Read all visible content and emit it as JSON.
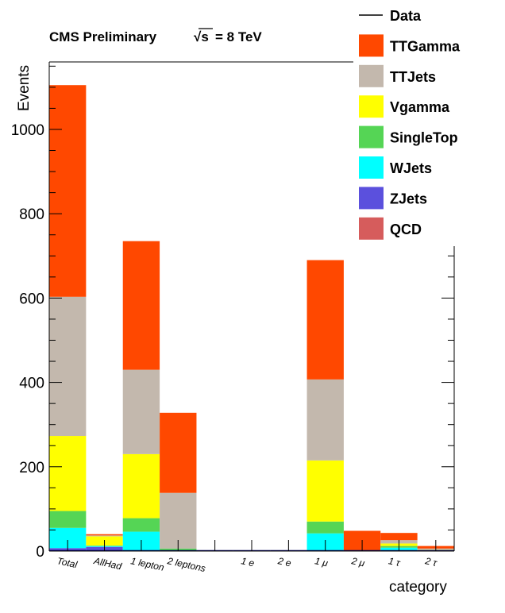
{
  "chart_data": {
    "type": "bar",
    "stacked": true,
    "title": "CMS Preliminary",
    "title_energy": "= 8 TeV",
    "sqrt_symbol": "√s",
    "xlabel": "category",
    "ylabel": "Events",
    "ylim": [
      0,
      1160
    ],
    "yticks": [
      0,
      200,
      400,
      600,
      800,
      1000
    ],
    "categories": [
      "Total",
      "AllHad",
      "1 lepton",
      "2 leptons",
      "",
      "1 e",
      "2 e",
      "1 μ",
      "2 μ",
      "1 τ",
      "2 τ"
    ],
    "series": [
      {
        "name": "ZJets",
        "color": "#5b50dd",
        "values": [
          7,
          10,
          1,
          0,
          0,
          0,
          0,
          2,
          0,
          0,
          0
        ]
      },
      {
        "name": "WJets",
        "color": "#00ffff",
        "values": [
          48,
          2,
          45,
          2,
          0,
          0,
          0,
          40,
          0,
          8,
          1
        ]
      },
      {
        "name": "SingleTop",
        "color": "#55d555",
        "values": [
          40,
          1,
          32,
          4,
          0,
          0,
          0,
          28,
          0,
          4,
          1
        ]
      },
      {
        "name": "Vgamma",
        "color": "#ffff00",
        "values": [
          178,
          22,
          152,
          0,
          0,
          0,
          0,
          145,
          0,
          6,
          1
        ]
      },
      {
        "name": "TTJets",
        "color": "#c3b8ad",
        "values": [
          330,
          2,
          200,
          132,
          0,
          0,
          0,
          192,
          0,
          8,
          3
        ]
      },
      {
        "name": "TTGamma",
        "color": "#ff4800",
        "values": [
          502,
          3,
          305,
          190,
          0,
          0,
          0,
          283,
          48,
          17,
          6
        ]
      },
      {
        "name": "QCD",
        "color": "#d65c5c",
        "values": [
          0,
          0,
          0,
          0,
          0,
          0,
          0,
          0,
          0,
          0,
          0
        ]
      }
    ],
    "data_series": {
      "name": "Data",
      "values": [
        0,
        0,
        0,
        0,
        0,
        0,
        0,
        0,
        0,
        0,
        0
      ]
    },
    "legend": {
      "placement": "top-right",
      "entries": [
        {
          "label": "Data",
          "style": "line",
          "color": "#000000"
        },
        {
          "label": "TTGamma",
          "style": "box",
          "color": "#ff4800"
        },
        {
          "label": "TTJets",
          "style": "box",
          "color": "#c3b8ad"
        },
        {
          "label": "Vgamma",
          "style": "box",
          "color": "#ffff00"
        },
        {
          "label": "SingleTop",
          "style": "box",
          "color": "#55d555"
        },
        {
          "label": "WJets",
          "style": "box",
          "color": "#00ffff"
        },
        {
          "label": "ZJets",
          "style": "box",
          "color": "#5b50dd"
        },
        {
          "label": "QCD",
          "style": "box",
          "color": "#d65c5c"
        }
      ]
    },
    "grid": false
  }
}
